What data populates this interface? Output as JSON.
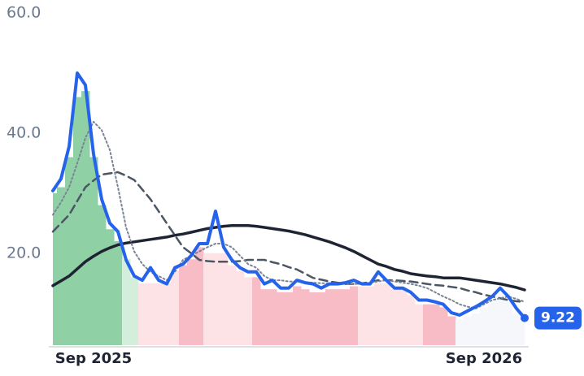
{
  "chart_data": {
    "type": "line",
    "categories": [
      null,
      null,
      null,
      null,
      null,
      "Sep 2025",
      null,
      null,
      null,
      null,
      null,
      null,
      null,
      null,
      null,
      null,
      null,
      null,
      null,
      null,
      null,
      null,
      null,
      null,
      null,
      null,
      null,
      null,
      null,
      null,
      null,
      null,
      null,
      null,
      null,
      null,
      null,
      null,
      null,
      null,
      null,
      null,
      null,
      null,
      null,
      null,
      null,
      null,
      null,
      null,
      null,
      null,
      null,
      "Sep 2026",
      null,
      null,
      null,
      null,
      null
    ],
    "ylim": [
      4.7,
      60
    ],
    "yticks": [
      {
        "value": 20,
        "label": "20.0"
      },
      {
        "value": 40,
        "label": "40.0"
      },
      {
        "value": 60,
        "label": "60.0"
      }
    ],
    "grid": false,
    "background": {
      "values": [
        30,
        31,
        36,
        46,
        47,
        36,
        28,
        24,
        22,
        19,
        16,
        15,
        15,
        15,
        15,
        17,
        18,
        19,
        21,
        20,
        20,
        20,
        18,
        17,
        16,
        16,
        14,
        14,
        13.5,
        13.5,
        14.5,
        14,
        13.5,
        13.5,
        14,
        14,
        14,
        14.5,
        14.5,
        14.5,
        15,
        15,
        14,
        14,
        13,
        11.5,
        11.5,
        11.5,
        11,
        9.5,
        9,
        9.5,
        10,
        11,
        12,
        13,
        12,
        10,
        9.5
      ],
      "colors": [
        "#8fd1a4",
        "#8fd1a4",
        "#8fd1a4",
        "#8fd1a4",
        "#8fd1a4",
        "#8fd1a4",
        "#8fd1a4",
        "#8fd1a4",
        "#8fd1a4",
        "#d4eedc",
        "#d4eedc",
        "#fde2e6",
        "#fde2e6",
        "#fde2e6",
        "#fde2e6",
        "#fde2e6",
        "#f7bcc6",
        "#f7bcc6",
        "#f7bcc6",
        "#fde2e6",
        "#fde2e6",
        "#fde2e6",
        "#fde2e6",
        "#fde2e6",
        "#fde2e6",
        "#f7bcc6",
        "#f7bcc6",
        "#f7bcc6",
        "#f7bcc6",
        "#f7bcc6",
        "#f7bcc6",
        "#f7bcc6",
        "#f7bcc6",
        "#f7bcc6",
        "#f7bcc6",
        "#f7bcc6",
        "#f7bcc6",
        "#f7bcc6",
        "#fde2e6",
        "#fde2e6",
        "#fde2e6",
        "#fde2e6",
        "#fde2e6",
        "#fde2e6",
        "#fde2e6",
        "#fde2e6",
        "#f7bcc6",
        "#f7bcc6",
        "#f7bcc6",
        "#f7bcc6",
        "#f5f7fa",
        "#f5f7fa",
        "#f5f7fa",
        "#f5f7fa",
        "#f5f7fa",
        "#f5f7fa",
        "#f5f7fa",
        "#f5f7fa",
        "#f5f7fa"
      ]
    },
    "series": [
      {
        "color": "#1f2433",
        "style": "solid",
        "width": 3.5,
        "values": [
          14.6,
          15.4,
          16.2,
          17.4,
          18.6,
          19.5,
          20.3,
          20.9,
          21.4,
          21.7,
          21.9,
          22.1,
          22.3,
          22.5,
          22.7,
          23,
          23.2,
          23.5,
          23.8,
          24.1,
          24.3,
          24.5,
          24.6,
          24.6,
          24.6,
          24.5,
          24.3,
          24.1,
          23.9,
          23.7,
          23.4,
          23.1,
          22.7,
          22.3,
          21.9,
          21.4,
          20.9,
          20.3,
          19.6,
          18.9,
          18.2,
          17.8,
          17.3,
          17,
          16.6,
          16.4,
          16.2,
          16.1,
          15.9,
          15.9,
          15.9,
          15.7,
          15.5,
          15.3,
          15.1,
          14.9,
          14.6,
          14.3,
          13.9
        ]
      },
      {
        "color": "#4b5563",
        "style": "dashed",
        "width": 2.5,
        "values": [
          23.6,
          25,
          26.4,
          28.7,
          31,
          32.1,
          33.1,
          33.3,
          33.5,
          32.9,
          32.2,
          30.6,
          29,
          27,
          25,
          23,
          21,
          20,
          18.9,
          18.7,
          18.6,
          18.6,
          18.6,
          18.7,
          18.9,
          18.9,
          18.9,
          18.5,
          18.2,
          17.7,
          17.3,
          16.6,
          15.9,
          15.6,
          15.3,
          15.1,
          14.9,
          14.9,
          15,
          15.2,
          15.5,
          15.5,
          15.5,
          15.4,
          15.3,
          15.1,
          14.9,
          14.7,
          14.6,
          14.4,
          14.2,
          13.8,
          13.5,
          13.1,
          12.8,
          12.5,
          12.2,
          12,
          11.9
        ]
      },
      {
        "color": "#7b8496",
        "style": "dotted",
        "width": 2,
        "values": [
          26.4,
          28.5,
          31,
          35,
          39.2,
          41.9,
          40.5,
          37.2,
          31,
          24.3,
          20.3,
          18.2,
          16.9,
          16.2,
          15.5,
          16.9,
          18.9,
          19.6,
          20.3,
          21,
          21.6,
          21.6,
          21,
          19.6,
          18.2,
          17.6,
          16.2,
          15.5,
          15.5,
          15.3,
          15.3,
          15.2,
          15.1,
          15,
          15,
          15,
          14.9,
          14.9,
          14.9,
          15.1,
          15.3,
          15.5,
          15.3,
          15.1,
          14.9,
          14.6,
          14.2,
          13.5,
          12.8,
          12.2,
          11.5,
          11.1,
          10.8,
          11.5,
          12.2,
          12.5,
          12.8,
          12.4,
          11.9
        ]
      },
      {
        "color": "#2563eb",
        "style": "solid",
        "width": 4,
        "values": [
          30.4,
          32.4,
          37.8,
          50,
          48,
          36.5,
          29,
          25,
          23.6,
          18.9,
          16.2,
          15.5,
          17.6,
          15.5,
          14.9,
          17.6,
          18.2,
          19.6,
          21.6,
          21.6,
          27,
          21,
          18.9,
          17.6,
          16.9,
          16.9,
          14.9,
          15.5,
          14.2,
          14.2,
          15.5,
          15.1,
          14.9,
          14.2,
          14.9,
          14.9,
          15.1,
          15.5,
          14.9,
          14.9,
          16.9,
          15.5,
          14.2,
          14.2,
          13.5,
          12.2,
          12.2,
          11.9,
          11.5,
          10.1,
          9.7,
          10.4,
          11.1,
          11.9,
          12.8,
          14.2,
          12.8,
          10.8,
          9.22
        ]
      }
    ]
  }
}
